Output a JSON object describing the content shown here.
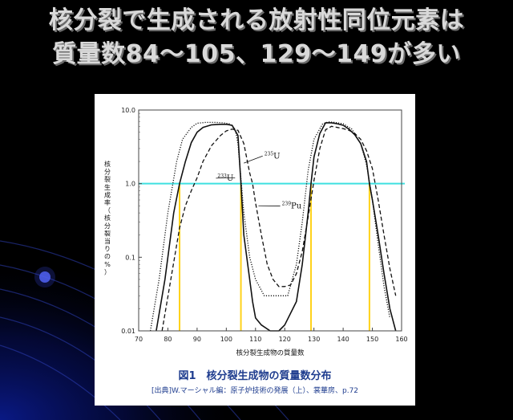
{
  "slide": {
    "title_line1": "核分裂で生成される放射性同位元素は",
    "title_line2": "質量数84～105、129～149が多い",
    "figure_caption": "図1　核分裂生成物の質量数分布",
    "figure_source": "[出典]W.マーシャル編：原子炉技術の発展（上）、裳華房、p.72"
  },
  "colors": {
    "background": "#000000",
    "bg_glow": "#0a1a8c",
    "title_text": "#d9d9d9",
    "caption_text": "#1f3d8f",
    "reference_line": "#3fe0e0",
    "marker_lines": "#ffd21a",
    "curves": "#111111"
  },
  "chart_data": {
    "type": "line",
    "xlabel": "核分裂生成物の質量数",
    "ylabel": "核分裂生成率（核分裂当りの%）",
    "x_ticks": [
      70,
      80,
      90,
      100,
      110,
      120,
      130,
      140,
      150,
      160
    ],
    "y_ticks": [
      0.01,
      0.1,
      1.0,
      10.0
    ],
    "y_tick_labels": [
      "0.01",
      "0.1",
      "1.0",
      "10.0"
    ],
    "xlim": [
      70,
      160
    ],
    "ylim": [
      0.01,
      10
    ],
    "yscale": "log",
    "grid": false,
    "reference_line": {
      "y": 1.0
    },
    "marker_x": [
      84,
      105,
      129,
      149
    ],
    "series": [
      {
        "name": "235U",
        "style": "solid",
        "x": [
          76,
          79,
          82,
          84,
          86,
          88,
          90,
          92,
          95,
          98,
          100,
          102,
          104,
          105,
          106,
          108,
          109,
          110,
          112,
          115,
          118,
          120,
          124,
          126,
          128,
          129,
          130,
          132,
          134,
          136,
          138,
          140,
          142,
          144,
          146,
          148,
          149,
          150,
          152,
          154,
          156,
          158
        ],
        "y": [
          0.01,
          0.05,
          0.4,
          1.0,
          2.0,
          3.6,
          5.0,
          5.8,
          6.3,
          6.4,
          6.4,
          6.2,
          4.5,
          1.0,
          0.2,
          0.05,
          0.025,
          0.015,
          0.012,
          0.01,
          0.01,
          0.012,
          0.025,
          0.08,
          0.4,
          1.0,
          2.3,
          4.8,
          6.7,
          6.7,
          6.5,
          6.2,
          5.5,
          4.6,
          3.5,
          2.0,
          1.0,
          0.6,
          0.2,
          0.06,
          0.02,
          0.01
        ]
      },
      {
        "name": "233U",
        "style": "dotted",
        "x": [
          74,
          77,
          80,
          83,
          85,
          88,
          90,
          93,
          96,
          99,
          101,
          103,
          104,
          106,
          108,
          110,
          113,
          117,
          121,
          124,
          126,
          128,
          130,
          133,
          135,
          137,
          140,
          143,
          146,
          148,
          150,
          152,
          154,
          156
        ],
        "y": [
          0.01,
          0.05,
          0.4,
          2.0,
          4.0,
          5.8,
          6.6,
          6.8,
          6.8,
          6.7,
          6.5,
          5.5,
          3.5,
          0.4,
          0.1,
          0.05,
          0.03,
          0.03,
          0.03,
          0.08,
          0.3,
          1.5,
          4.0,
          6.5,
          6.9,
          6.8,
          6.5,
          5.5,
          3.5,
          1.8,
          0.6,
          0.15,
          0.04,
          0.015
        ]
      },
      {
        "name": "239Pu",
        "style": "dashed",
        "x": [
          78,
          81,
          84,
          86,
          88,
          90,
          92,
          95,
          98,
          100,
          102,
          104,
          106,
          108,
          109,
          110,
          112,
          114,
          116,
          118,
          120,
          122,
          124,
          126,
          128,
          130,
          132,
          134,
          136,
          138,
          140,
          142,
          144,
          146,
          148,
          150,
          152,
          154,
          156,
          158
        ],
        "y": [
          0.01,
          0.05,
          0.25,
          0.5,
          0.8,
          1.2,
          2.0,
          3.3,
          4.5,
          5.2,
          5.5,
          5.3,
          3.5,
          1.4,
          1.0,
          0.55,
          0.2,
          0.08,
          0.05,
          0.04,
          0.04,
          0.042,
          0.06,
          0.12,
          0.35,
          1.1,
          3.0,
          5.4,
          6.0,
          5.8,
          5.6,
          5.3,
          4.8,
          4.0,
          2.8,
          1.6,
          0.6,
          0.2,
          0.07,
          0.03
        ]
      }
    ],
    "annotations": [
      {
        "base": "235",
        "text": "U",
        "x": 113,
        "y": 2.2,
        "arrow_to_x": 106,
        "arrow_to_y": 1.9
      },
      {
        "base": "233",
        "text": "U",
        "x": 97,
        "y": 1.1,
        "arrow_to_x": 103,
        "arrow_to_y": 1.2
      },
      {
        "base": "239",
        "text": "Pu",
        "x": 119,
        "y": 0.46,
        "arrow_to_x": 111,
        "arrow_to_y": 0.5
      }
    ]
  }
}
